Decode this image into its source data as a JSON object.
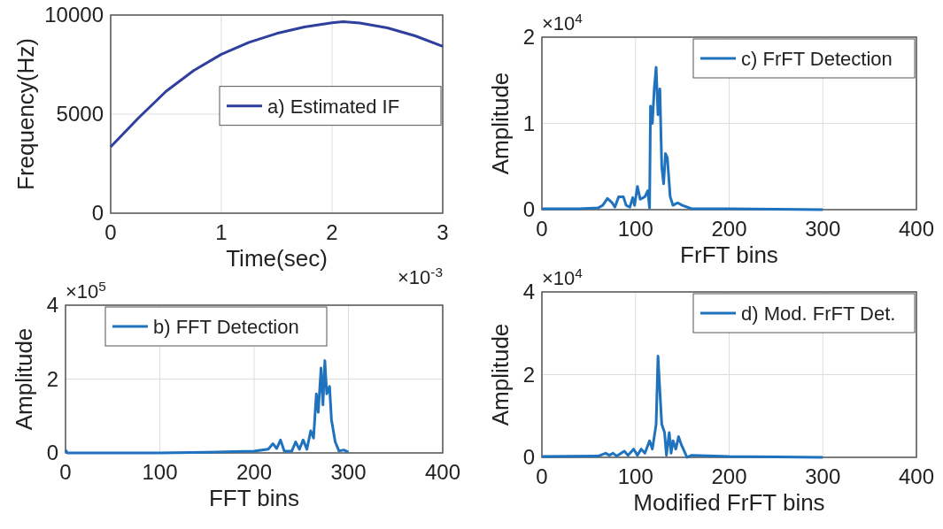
{
  "chart_data": [
    {
      "type": "line",
      "xlabel": "Time(sec)",
      "ylabel": "Frequency(Hz)",
      "xlim": [
        0,
        3
      ],
      "xticks": [
        0,
        1,
        2,
        3
      ],
      "ylim": [
        0,
        10000
      ],
      "yticks": [
        0,
        5000,
        10000
      ],
      "grid": true,
      "legend": "right",
      "series": [
        {
          "name": "a) Estimated IF",
          "color": "#2e3f9e",
          "x": [
            0,
            0.25,
            0.5,
            0.75,
            1,
            1.25,
            1.5,
            1.75,
            2,
            2.1,
            2.25,
            2.5,
            2.75,
            3
          ],
          "values": [
            3350,
            4800,
            6150,
            7200,
            8020,
            8620,
            9070,
            9400,
            9610,
            9660,
            9600,
            9350,
            8950,
            8420
          ]
        }
      ]
    },
    {
      "type": "line",
      "xlabel": "FrFT bins",
      "ylabel": "Amplitude",
      "xlim": [
        0,
        400
      ],
      "xticks": [
        0,
        100,
        200,
        300,
        400
      ],
      "ylim": [
        0,
        2
      ],
      "yticks": [
        0,
        1,
        2
      ],
      "grid": true,
      "legend": "top right",
      "annotations": [
        "×10$^{4}$"
      ],
      "series": [
        {
          "name": "c) FrFT Detection",
          "color": "#1f72bd",
          "x": [
            0,
            20,
            40,
            60,
            65,
            70,
            75,
            78,
            82,
            87,
            90,
            94,
            97,
            99,
            102,
            105,
            110,
            113,
            115,
            116,
            118,
            120,
            122,
            124,
            126,
            128,
            130,
            132,
            134,
            137,
            140,
            145,
            150,
            160,
            200,
            300
          ],
          "values": [
            0.01,
            0.01,
            0.01,
            0.02,
            0.05,
            0.13,
            0.08,
            0.03,
            0.15,
            0.15,
            0.05,
            0.03,
            0.14,
            0.05,
            0.27,
            0.12,
            0.15,
            0.22,
            0.02,
            1.2,
            1.0,
            1.4,
            1.65,
            1.1,
            1.4,
            0.5,
            0.3,
            0.65,
            0.6,
            0.15,
            0.05,
            0.08,
            0.05,
            0.01,
            0.01,
            0
          ]
        }
      ]
    },
    {
      "type": "line",
      "xlabel": "FFT bins",
      "ylabel": "Amplitude",
      "xlim": [
        0,
        400
      ],
      "xticks": [
        0,
        100,
        200,
        300,
        400
      ],
      "ylim": [
        0,
        4
      ],
      "yticks": [
        0,
        2,
        4
      ],
      "grid": true,
      "legend": "top left",
      "annotations": [
        "×10$^{5}$",
        "×10$^{-3}$"
      ],
      "series": [
        {
          "name": "b) FFT Detection",
          "color": "#1f72bd",
          "x": [
            0,
            2,
            50,
            100,
            150,
            200,
            215,
            220,
            224,
            228,
            232,
            240,
            244,
            248,
            252,
            256,
            260,
            263,
            266,
            268,
            271,
            273,
            275,
            277,
            280,
            282,
            286,
            290,
            295,
            300
          ],
          "values": [
            0.08,
            0,
            0,
            0,
            0.02,
            0.05,
            0.1,
            0.25,
            0.12,
            0.35,
            0.05,
            0.05,
            0.3,
            0.1,
            0.35,
            0.1,
            0.6,
            0.4,
            1.6,
            1.1,
            2.3,
            1.3,
            2.5,
            1.6,
            1.8,
            0.9,
            0.3,
            0.05,
            0.08,
            0.02
          ]
        }
      ]
    },
    {
      "type": "line",
      "xlabel": "Modified FrFT bins",
      "ylabel": "Amplitude",
      "xlim": [
        0,
        400
      ],
      "xticks": [
        0,
        100,
        200,
        300,
        400
      ],
      "ylim": [
        0,
        4
      ],
      "yticks": [
        0,
        2,
        4
      ],
      "grid": true,
      "legend": "top right",
      "annotations": [
        "×10$^{4}$"
      ],
      "series": [
        {
          "name": "d) Mod. FrFT Det.",
          "color": "#1f72bd",
          "x": [
            0,
            60,
            68,
            72,
            76,
            80,
            88,
            92,
            98,
            102,
            106,
            110,
            115,
            118,
            122,
            124,
            126,
            128,
            131,
            133,
            136,
            138,
            140,
            143,
            146,
            149,
            152,
            155,
            160,
            200,
            300
          ],
          "values": [
            0.02,
            0.03,
            0.1,
            0.05,
            0.1,
            0.03,
            0.15,
            0.05,
            0.2,
            0.05,
            0.2,
            0.1,
            0.4,
            0.2,
            0.8,
            2.45,
            1.6,
            0.8,
            0.6,
            0.05,
            0.6,
            0.1,
            0.4,
            0.2,
            0.5,
            0.3,
            0.15,
            0,
            0.05,
            0.02,
            0
          ]
        }
      ]
    }
  ]
}
